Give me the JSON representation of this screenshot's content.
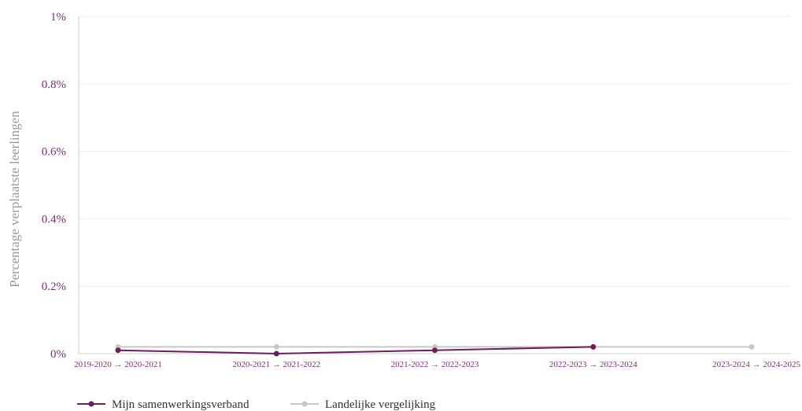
{
  "chart_data": {
    "type": "line",
    "title": "",
    "xlabel": "",
    "ylabel": "Percentage verplaatste leerlingen",
    "categories": [
      "2019-2020 → 2020-2021",
      "2020-2021 → 2021-2022",
      "2021-2022 → 2022-2023",
      "2022-2023 → 2023-2024",
      "2023-2024 → 2024-2025"
    ],
    "ylim": [
      0,
      1
    ],
    "yticks": [
      "0%",
      "0.2%",
      "0.4%",
      "0.6%",
      "0.8%",
      "1%"
    ],
    "ytick_values": [
      0,
      0.2,
      0.4,
      0.6,
      0.8,
      1
    ],
    "grid": true,
    "legend_position": "bottom-left",
    "series": [
      {
        "name": "Landelijke vergelijking",
        "color": "#c8c8c8",
        "values": [
          0.02,
          0.02,
          0.02,
          0.02,
          0.02
        ]
      },
      {
        "name": "Mijn samenwerkingsverband",
        "color": "#6b1f5e",
        "values": [
          0.01,
          0.0,
          0.01,
          0.02,
          null
        ]
      }
    ]
  }
}
